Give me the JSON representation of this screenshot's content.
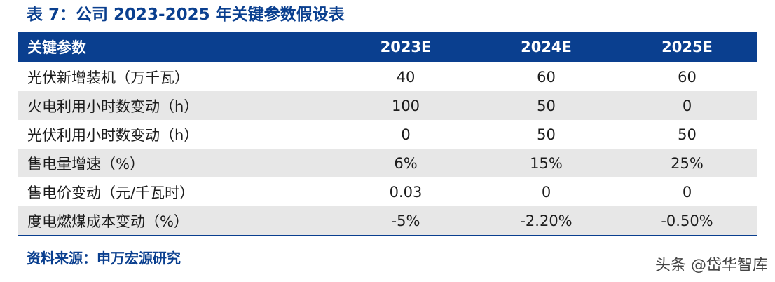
{
  "title": "表 7：公司 2023-2025 年关键参数假设表",
  "table": {
    "headers": [
      "关键参数",
      "2023E",
      "2024E",
      "2025E"
    ],
    "rows": [
      [
        "光伏新增装机（万千瓦）",
        "40",
        "60",
        "60"
      ],
      [
        "火电利用小时数变动（h）",
        "100",
        "50",
        "0"
      ],
      [
        "光伏利用小时数变动（h）",
        "0",
        "50",
        "50"
      ],
      [
        "售电量增速（%）",
        "6%",
        "15%",
        "25%"
      ],
      [
        "售电价变动（元/千瓦时）",
        "0.03",
        "0",
        "0"
      ],
      [
        "度电燃煤成本变动（%）",
        "-5%",
        "-2.20%",
        "-0.50%"
      ]
    ]
  },
  "source": "资料来源：申万宏源研究",
  "watermark": "头条 @岱华智库",
  "colors": {
    "header_bg": "#0a3f8f",
    "title_text": "#0a3f8f",
    "alt_row_bg": "#e7e7e7"
  }
}
